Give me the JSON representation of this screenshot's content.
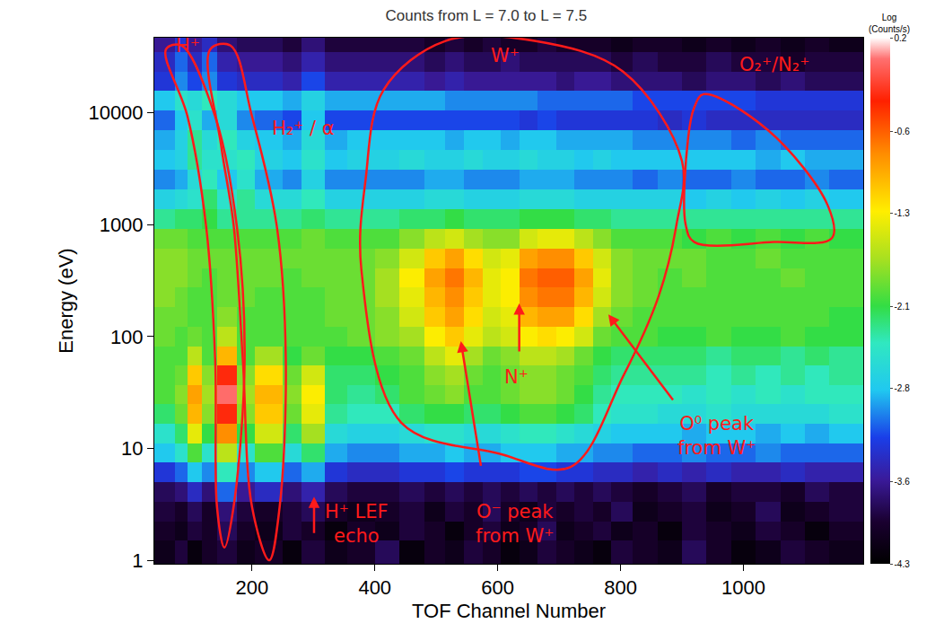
{
  "chart_data": {
    "type": "heatmap",
    "title": "Counts from L = 7.0 to L = 7.5",
    "x_label": "TOF Channel Number",
    "y_label": "Energy (eV)",
    "log": "y",
    "xlim": [
      41,
      1195
    ],
    "ylim": [
      0.93,
      47000
    ],
    "xticks": [
      200,
      400,
      600,
      800,
      1000
    ],
    "yticks": [
      1,
      10,
      100,
      1000,
      10000
    ],
    "x_bins": [
      41,
      75,
      95,
      118,
      143,
      175,
      205,
      250,
      280,
      318,
      355,
      400,
      440,
      480,
      515,
      545,
      575,
      605,
      635,
      665,
      695,
      725,
      755,
      785,
      820,
      860,
      900,
      940,
      980,
      1020,
      1060,
      1100,
      1140,
      1195
    ],
    "y_bins": [
      0.93,
      1.5,
      2.2,
      3.3,
      5,
      7.5,
      11,
      16.5,
      25,
      37,
      55,
      82,
      122,
      183,
      275,
      410,
      615,
      920,
      1380,
      2070,
      3100,
      4650,
      7000,
      10500,
      15700,
      23500,
      35000,
      47000
    ],
    "cells": [
      [
        -4.1,
        -3.9,
        -4.2,
        -4.0,
        -3.9,
        -4.1,
        -4.0,
        -4.2,
        -3.9,
        -4.1,
        -4.0,
        -3.8,
        -4.2,
        -4.0,
        -4.1,
        -3.9,
        -4.0,
        -4.2,
        -4.1,
        -3.9,
        -4.0,
        -4.1,
        -4.2,
        -3.9,
        -4.0,
        -4.1,
        -3.8,
        -4.0,
        -4.2,
        -4.1,
        -3.9,
        -4.0,
        -4.1
      ],
      [
        -4.0,
        -4.1,
        -3.9,
        -4.0,
        -3.8,
        -4.0,
        -4.1,
        -3.9,
        -4.0,
        -4.2,
        -4.0,
        -4.1,
        -3.9,
        -4.0,
        -4.2,
        -4.0,
        -3.9,
        -4.1,
        -4.0,
        -3.8,
        -4.1,
        -4.0,
        -3.9,
        -4.1,
        -4.0,
        -4.2,
        -3.9,
        -4.0,
        -4.1,
        -3.9,
        -4.0,
        -4.2,
        -4.0
      ],
      [
        -3.9,
        -4.0,
        -3.8,
        -4.0,
        -3.7,
        -3.9,
        -4.0,
        -3.9,
        -3.8,
        -4.0,
        -4.1,
        -4.0,
        -3.9,
        -4.1,
        -3.9,
        -4.0,
        -3.8,
        -4.0,
        -4.1,
        -3.9,
        -4.0,
        -3.9,
        -4.0,
        -3.8,
        -4.1,
        -4.0,
        -3.9,
        -4.1,
        -4.0,
        -3.8,
        -4.1,
        -4.0,
        -3.9
      ],
      [
        -3.8,
        -3.7,
        -3.4,
        -3.7,
        -3.1,
        -3.6,
        -3.4,
        -3.7,
        -3.5,
        -3.8,
        -3.9,
        -3.9,
        -3.8,
        -3.9,
        -3.8,
        -3.9,
        -3.8,
        -3.9,
        -3.8,
        -3.9,
        -3.8,
        -3.9,
        -3.8,
        -3.9,
        -4.0,
        -3.9,
        -3.8,
        -4.0,
        -3.9,
        -3.9,
        -4.0,
        -3.8,
        -3.9
      ],
      [
        -3.3,
        -3.1,
        -2.8,
        -3.0,
        -2.4,
        -3.0,
        -2.8,
        -3.1,
        -2.9,
        -3.3,
        -3.4,
        -3.4,
        -3.3,
        -3.3,
        -3.2,
        -3.3,
        -3.3,
        -3.3,
        -3.2,
        -3.2,
        -3.3,
        -3.3,
        -3.4,
        -3.4,
        -3.5,
        -3.4,
        -3.5,
        -3.4,
        -3.5,
        -3.5,
        -3.4,
        -3.5,
        -3.5
      ],
      [
        -2.8,
        -2.5,
        -2.0,
        -2.5,
        -1.6,
        -2.5,
        -2.0,
        -2.6,
        -2.2,
        -2.9,
        -3.0,
        -3.0,
        -2.9,
        -2.9,
        -2.8,
        -2.9,
        -2.9,
        -2.8,
        -2.8,
        -2.8,
        -2.9,
        -2.9,
        -3.0,
        -3.0,
        -3.1,
        -3.1,
        -3.0,
        -3.1,
        -3.1,
        -3.0,
        -3.1,
        -3.1,
        -3.1
      ],
      [
        -2.5,
        -2.2,
        -1.4,
        -2.1,
        -0.8,
        -2.1,
        -1.5,
        -2.2,
        -1.7,
        -2.6,
        -2.7,
        -2.7,
        -2.6,
        -2.5,
        -2.5,
        -2.6,
        -2.6,
        -2.5,
        -2.4,
        -2.4,
        -2.5,
        -2.6,
        -2.7,
        -2.8,
        -2.8,
        -2.8,
        -2.9,
        -2.8,
        -2.8,
        -2.9,
        -2.8,
        -2.9,
        -2.8
      ],
      [
        -2.2,
        -1.9,
        -1.0,
        -1.8,
        -0.3,
        -1.8,
        -1.1,
        -1.9,
        -1.4,
        -2.3,
        -2.4,
        -2.4,
        -2.2,
        -2.1,
        -2.1,
        -2.2,
        -2.2,
        -2.1,
        -2.0,
        -2.0,
        -2.1,
        -2.2,
        -2.4,
        -2.5,
        -2.5,
        -2.6,
        -2.6,
        -2.5,
        -2.6,
        -2.6,
        -2.6,
        -2.6,
        -2.5
      ],
      [
        -2.0,
        -1.8,
        -0.9,
        -1.7,
        0.0,
        -1.7,
        -1.0,
        -1.8,
        -1.3,
        -2.2,
        -2.3,
        -2.2,
        -2.0,
        -1.9,
        -1.8,
        -2.0,
        -2.0,
        -1.9,
        -1.8,
        -1.8,
        -1.9,
        -2.1,
        -2.3,
        -2.4,
        -2.4,
        -2.4,
        -2.5,
        -2.4,
        -2.5,
        -2.4,
        -2.5,
        -2.4,
        -2.4
      ],
      [
        -2.0,
        -1.9,
        -1.1,
        -1.8,
        -0.3,
        -1.8,
        -1.2,
        -1.9,
        -1.5,
        -2.2,
        -2.2,
        -2.1,
        -2.0,
        -1.8,
        -1.7,
        -1.9,
        -2.0,
        -1.9,
        -1.8,
        -1.8,
        -1.9,
        -2.0,
        -2.2,
        -2.3,
        -2.3,
        -2.3,
        -2.3,
        -2.4,
        -2.3,
        -2.4,
        -2.3,
        -2.4,
        -2.3
      ],
      [
        -2.0,
        -2.0,
        -1.6,
        -2.0,
        -1.0,
        -2.0,
        -1.7,
        -2.1,
        -1.9,
        -2.1,
        -2.1,
        -2.0,
        -1.9,
        -1.6,
        -1.4,
        -1.7,
        -1.9,
        -1.8,
        -1.6,
        -1.6,
        -1.7,
        -1.9,
        -2.1,
        -2.2,
        -2.2,
        -2.2,
        -2.2,
        -2.3,
        -2.2,
        -2.2,
        -2.3,
        -2.2,
        -2.3
      ],
      [
        -1.9,
        -2.0,
        -1.9,
        -2.0,
        -1.6,
        -2.0,
        -2.0,
        -2.0,
        -2.0,
        -2.0,
        -1.9,
        -1.8,
        -1.7,
        -1.3,
        -1.1,
        -1.4,
        -1.6,
        -1.5,
        -1.3,
        -1.2,
        -1.3,
        -1.5,
        -1.9,
        -2.0,
        -2.0,
        -2.1,
        -2.1,
        -2.0,
        -2.1,
        -2.1,
        -2.0,
        -2.1,
        -2.1
      ],
      [
        -1.9,
        -1.9,
        -2.0,
        -2.0,
        -1.8,
        -2.0,
        -2.0,
        -2.0,
        -2.0,
        -1.9,
        -1.9,
        -1.8,
        -1.5,
        -1.1,
        -0.9,
        -1.2,
        -1.5,
        -1.4,
        -1.0,
        -0.9,
        -0.9,
        -1.2,
        -1.7,
        -1.9,
        -2.0,
        -2.0,
        -2.0,
        -2.0,
        -2.0,
        -2.0,
        -2.0,
        -2.0,
        -2.1
      ],
      [
        -1.8,
        -1.9,
        -2.0,
        -2.0,
        -1.9,
        -1.9,
        -2.0,
        -2.0,
        -2.0,
        -1.9,
        -1.9,
        -1.7,
        -1.4,
        -1.0,
        -0.8,
        -1.1,
        -1.4,
        -1.3,
        -0.8,
        -0.7,
        -0.7,
        -1.0,
        -1.5,
        -1.8,
        -1.9,
        -2.0,
        -2.0,
        -2.0,
        -2.0,
        -2.0,
        -2.0,
        -2.0,
        -2.0
      ],
      [
        -1.8,
        -1.8,
        -1.9,
        -2.0,
        -1.9,
        -1.9,
        -1.9,
        -2.0,
        -1.9,
        -1.9,
        -1.9,
        -1.7,
        -1.3,
        -0.9,
        -0.7,
        -1.0,
        -1.4,
        -1.3,
        -0.7,
        -0.6,
        -0.6,
        -0.9,
        -1.4,
        -1.8,
        -1.9,
        -2.0,
        -1.9,
        -2.0,
        -2.0,
        -2.0,
        -1.9,
        -2.0,
        -2.0
      ],
      [
        -1.8,
        -1.8,
        -1.9,
        -1.9,
        -1.9,
        -1.9,
        -1.9,
        -1.9,
        -1.9,
        -1.9,
        -1.9,
        -1.8,
        -1.5,
        -1.1,
        -0.9,
        -1.2,
        -1.5,
        -1.4,
        -0.9,
        -0.8,
        -0.8,
        -1.1,
        -1.5,
        -1.8,
        -1.9,
        -1.9,
        -1.9,
        -2.0,
        -2.0,
        -1.9,
        -2.0,
        -2.0,
        -2.0
      ],
      [
        -1.9,
        -1.9,
        -2.0,
        -2.0,
        -2.0,
        -2.0,
        -2.0,
        -2.0,
        -1.9,
        -2.0,
        -2.0,
        -2.0,
        -1.8,
        -1.6,
        -1.5,
        -1.7,
        -1.8,
        -1.8,
        -1.5,
        -1.4,
        -1.4,
        -1.6,
        -1.8,
        -2.0,
        -2.0,
        -2.0,
        -2.1,
        -2.0,
        -2.1,
        -2.0,
        -2.1,
        -2.0,
        -2.1
      ],
      [
        -2.3,
        -2.2,
        -2.2,
        -2.1,
        -2.3,
        -2.3,
        -2.3,
        -2.3,
        -2.2,
        -2.3,
        -2.3,
        -2.3,
        -2.2,
        -2.2,
        -2.1,
        -2.2,
        -2.2,
        -2.2,
        -2.1,
        -2.1,
        -2.1,
        -2.2,
        -2.2,
        -2.3,
        -2.3,
        -2.3,
        -2.3,
        -2.3,
        -2.3,
        -2.3,
        -2.3,
        -2.3,
        -2.3
      ],
      [
        -2.7,
        -2.6,
        -2.5,
        -2.2,
        -2.5,
        -2.3,
        -2.6,
        -2.6,
        -2.4,
        -2.7,
        -2.7,
        -2.7,
        -2.7,
        -2.6,
        -2.6,
        -2.7,
        -2.7,
        -2.7,
        -2.6,
        -2.6,
        -2.6,
        -2.7,
        -2.7,
        -2.7,
        -2.7,
        -2.7,
        -2.8,
        -2.7,
        -2.8,
        -2.7,
        -2.8,
        -2.7,
        -2.8
      ],
      [
        -3.0,
        -2.9,
        -2.6,
        -2.4,
        -2.8,
        -2.5,
        -2.9,
        -3.0,
        -2.7,
        -3.0,
        -3.0,
        -3.0,
        -3.0,
        -2.9,
        -2.9,
        -3.0,
        -3.0,
        -3.0,
        -2.9,
        -2.9,
        -2.9,
        -3.0,
        -3.0,
        -3.0,
        -3.1,
        -3.0,
        -3.1,
        -3.1,
        -3.0,
        -3.1,
        -3.1,
        -3.0,
        -3.1
      ],
      [
        -2.8,
        -2.7,
        -2.3,
        -2.5,
        -2.5,
        -2.4,
        -2.7,
        -2.8,
        -2.5,
        -2.8,
        -2.7,
        -2.7,
        -2.6,
        -2.7,
        -2.7,
        -2.6,
        -2.7,
        -2.7,
        -2.6,
        -2.7,
        -2.7,
        -2.8,
        -2.7,
        -2.8,
        -2.8,
        -2.8,
        -2.8,
        -2.8,
        -2.8,
        -2.9,
        -2.8,
        -2.9,
        -2.9
      ],
      [
        -2.9,
        -2.7,
        -2.3,
        -2.6,
        -2.4,
        -2.7,
        -2.8,
        -2.9,
        -2.6,
        -2.9,
        -2.8,
        -2.8,
        -2.8,
        -2.8,
        -2.9,
        -2.8,
        -2.8,
        -2.9,
        -2.8,
        -2.8,
        -2.9,
        -2.9,
        -2.9,
        -2.9,
        -3.0,
        -3.0,
        -3.0,
        -3.0,
        -3.1,
        -3.0,
        -3.1,
        -3.1,
        -3.1
      ],
      [
        -3.1,
        -2.8,
        -2.5,
        -2.9,
        -2.6,
        -3.0,
        -3.1,
        -3.2,
        -2.8,
        -3.2,
        -3.2,
        -3.2,
        -3.2,
        -3.2,
        -3.2,
        -3.2,
        -3.2,
        -3.2,
        -3.3,
        -3.2,
        -3.3,
        -3.3,
        -3.3,
        -3.3,
        -3.3,
        -3.4,
        -3.3,
        -3.4,
        -3.4,
        -3.4,
        -3.4,
        -3.4,
        -3.4
      ],
      [
        -2.8,
        -2.5,
        -2.6,
        -2.4,
        -2.6,
        -2.8,
        -2.8,
        -2.9,
        -2.7,
        -2.9,
        -2.9,
        -2.9,
        -2.9,
        -2.9,
        -3.0,
        -3.0,
        -3.0,
        -3.0,
        -3.0,
        -3.1,
        -3.1,
        -3.1,
        -3.1,
        -3.1,
        -3.2,
        -3.2,
        -3.2,
        -3.2,
        -3.2,
        -3.3,
        -3.3,
        -3.3,
        -3.3
      ],
      [
        -3.3,
        -3.0,
        -3.2,
        -3.0,
        -3.3,
        -3.4,
        -3.4,
        -3.5,
        -3.2,
        -3.5,
        -3.5,
        -3.5,
        -3.5,
        -3.6,
        -3.5,
        -3.6,
        -3.6,
        -3.6,
        -3.6,
        -3.6,
        -3.7,
        -3.6,
        -3.6,
        -3.7,
        -3.7,
        -3.7,
        -3.8,
        -3.7,
        -3.7,
        -3.8,
        -3.7,
        -3.8,
        -3.8
      ],
      [
        -3.4,
        -3.1,
        -3.4,
        -3.1,
        -3.5,
        -3.6,
        -3.6,
        -3.7,
        -3.5,
        -3.7,
        -3.7,
        -3.7,
        -3.7,
        -3.8,
        -3.7,
        -3.8,
        -3.8,
        -3.7,
        -3.8,
        -3.8,
        -3.8,
        -3.8,
        -3.8,
        -3.9,
        -3.8,
        -3.9,
        -3.9,
        -3.8,
        -3.9,
        -3.9,
        -4.0,
        -3.9,
        -3.9
      ],
      [
        -3.6,
        -3.3,
        -3.6,
        -3.4,
        -3.7,
        -3.8,
        -3.8,
        -3.9,
        -3.7,
        -3.9,
        -3.9,
        -3.9,
        -3.9,
        -4.0,
        -3.9,
        -4.0,
        -3.9,
        -4.0,
        -4.0,
        -3.9,
        -4.0,
        -4.0,
        -4.0,
        -4.1,
        -4.0,
        -4.0,
        -4.1,
        -4.0,
        -4.1,
        -4.0,
        -4.1,
        -4.0,
        -4.1
      ]
    ],
    "color_range": [
      -4.3,
      0.2
    ],
    "color_ticks": [
      -4.3,
      -3.6,
      -2.8,
      -2.1,
      -1.3,
      -0.6,
      0.2
    ],
    "color_title": [
      "Log",
      "(Counts/s)"
    ],
    "regions": [
      {
        "label": "H⁺",
        "label_at": [
          96,
          40000
        ],
        "outline": [
          [
            60,
            37000
          ],
          [
            95,
            9300
          ],
          [
            125,
            1000
          ],
          [
            140,
            63
          ],
          [
            143,
            3
          ],
          [
            155,
            1.3
          ],
          [
            170,
            3
          ],
          [
            188,
            63
          ],
          [
            175,
            1000
          ],
          [
            140,
            9300
          ],
          [
            85,
            40000
          ],
          [
            60,
            37000
          ]
        ]
      },
      {
        "label": "H₂⁺ / α",
        "label_at": [
          284,
          7300
        ],
        "outline": [
          [
            132,
            37000
          ],
          [
            150,
            5000
          ],
          [
            170,
            1000
          ],
          [
            185,
            63
          ],
          [
            200,
            3
          ],
          [
            228,
            1.0
          ],
          [
            245,
            3
          ],
          [
            255,
            63
          ],
          [
            240,
            1000
          ],
          [
            200,
            9300
          ],
          [
            165,
            40000
          ],
          [
            132,
            37000
          ]
        ]
      },
      {
        "label": "W⁺",
        "label_at": [
          612,
          32600
        ],
        "outline": [
          [
            378,
            400
          ],
          [
            385,
            2550
          ],
          [
            414,
            16000
          ],
          [
            515,
            44000
          ],
          [
            660,
            44000
          ],
          [
            804,
            23400
          ],
          [
            900,
            3700
          ],
          [
            891,
            1000
          ],
          [
            862,
            230
          ],
          [
            804,
            44
          ],
          [
            718,
            6.8
          ],
          [
            602,
            9
          ],
          [
            443,
            17
          ],
          [
            378,
            400
          ]
        ]
      },
      {
        "label": "O₂⁺/N₂⁺",
        "label_at": [
          1050,
          27000
        ],
        "outline": [
          [
            935,
            14700
          ],
          [
            1040,
            7000
          ],
          [
            1137,
            1500
          ],
          [
            1144,
            760
          ],
          [
            1050,
            700
          ],
          [
            920,
            700
          ],
          [
            906,
            1000
          ],
          [
            910,
            6000
          ],
          [
            920,
            11200
          ],
          [
            935,
            14700
          ]
        ]
      }
    ],
    "annotations": [
      {
        "text": [
          "N⁺"
        ],
        "at": [
          631,
          43.6
        ],
        "arrow_from": [
          635,
          71.5
        ],
        "arrow_to": [
          635,
          198
        ]
      },
      {
        "text": [
          "O⁰ peak",
          "from W⁺"
        ],
        "at": [
          956,
          13.0
        ],
        "arrow_from": [
          887,
          26.4
        ],
        "arrow_to": [
          780,
          158
        ]
      },
      {
        "text": [
          "O⁻ peak",
          "from W⁺"
        ],
        "at": [
          628,
          2.1
        ],
        "arrow_from": [
          573,
          6.8
        ],
        "arrow_to": [
          540,
          91
        ]
      },
      {
        "text": [
          "H⁺ LEF",
          "echo"
        ],
        "at": [
          371,
          2.1
        ],
        "arrow_from": [
          301,
          1.7
        ],
        "arrow_to": [
          301,
          3.7
        ]
      }
    ]
  }
}
